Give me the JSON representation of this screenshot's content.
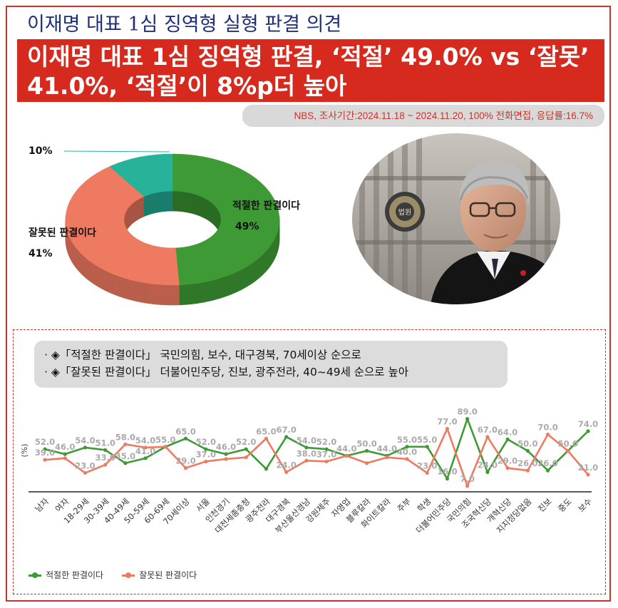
{
  "top_title": "이재명 대표 1심 징역형 실형 판결 의견",
  "headline": {
    "line1": "이재명 대표 1심 징역형 판결, ‘적절’ 49.0% vs ‘잘못’",
    "line2": "41.0%, ‘적절’이 8%p더 높아"
  },
  "source": "NBS, 조사기간:2024.11.18 ~ 2024.11.20, 100% 전화면접, 응답률:16.7%",
  "photo": {
    "sign_text": "법원"
  },
  "notes": [
    "· ◈「적절한 판결이다」 국민의힘, 보수, 대구경북, 70세이상 순으로",
    "· ◈「잘못된 판결이다」 더불어민주당, 진보, 광주전라, 40~49세 순으로 높아"
  ],
  "colors": {
    "green": "#3d9a34",
    "salmon": "#ef7a62",
    "teal": "#26b39a",
    "red": "#d72a1f"
  },
  "chart_data": [
    {
      "type": "pie",
      "style": "donut-3d",
      "slices": [
        {
          "label": "적절한 판결이다",
          "value": 49,
          "value_label": "49%",
          "color": "#3d9a34"
        },
        {
          "label": "잘못된 판결이다",
          "value": 41,
          "value_label": "41%",
          "color": "#ef7a62"
        },
        {
          "label": "",
          "value": 10,
          "value_label": "10%",
          "color": "#26b39a"
        }
      ]
    },
    {
      "type": "line",
      "ylabel": "(%)",
      "categories": [
        "남자",
        "여자",
        "18-29세",
        "30-39세",
        "40-49세",
        "50-59세",
        "60-69세",
        "70세이상",
        "서울",
        "인천경기",
        "대전세종충청",
        "광주전라",
        "대구경북",
        "부산울산경남",
        "강원제주",
        "자영업",
        "블루칼라",
        "화이트칼라",
        "주부",
        "학생",
        "더불어민주당",
        "국민의힘",
        "조국혁신당",
        "개혁신당",
        "지지정당없음",
        "진보",
        "중도",
        "보수"
      ],
      "series": [
        {
          "name": "적절한 판결이다",
          "color": "#3d9a34",
          "values": [
            52.0,
            46.0,
            54.0,
            51.0,
            35.0,
            41.0,
            55.0,
            65.0,
            52.0,
            46.0,
            52.0,
            28.0,
            67.0,
            54.0,
            52.0,
            44.0,
            50.0,
            44.0,
            55.0,
            55.0,
            16.0,
            89.0,
            24.0,
            64.0,
            50.0,
            26.0,
            50.0,
            74.0
          ],
          "labels": [
            "52.0",
            "46.0",
            "54.0",
            "51.0",
            "35.0",
            "41.0",
            "55.0",
            "65.0",
            "52.0",
            "46.0",
            "52.0",
            "",
            "67.0",
            "54.0",
            "52.0",
            "44.0",
            "50.0",
            "44.0",
            "55.0",
            "55.0",
            "16.0",
            "89.0",
            "24.0",
            "64.0",
            "50.0",
            "26.0",
            "50.0",
            "74.0"
          ]
        },
        {
          "name": "잘못된 판결이다",
          "color": "#ef7a62",
          "values": [
            39.0,
            41.0,
            23.0,
            33.0,
            58.0,
            54.0,
            55.0,
            29.0,
            37.0,
            40.0,
            42.0,
            65.0,
            24.0,
            38.0,
            37.0,
            44.0,
            35.0,
            42.0,
            40.0,
            23.0,
            77.0,
            7.0,
            67.0,
            29.0,
            26.0,
            70.0,
            50.0,
            21.0
          ],
          "labels": [
            "39.0",
            "",
            "23.0",
            "33.0",
            "58.0",
            "54.0",
            "",
            "29.0",
            "37.0",
            "",
            "",
            "65.0",
            "24.0",
            "38.0",
            "37.0",
            "",
            "",
            "",
            "40.0",
            "23.0",
            "77.0",
            "7.0",
            "67.0",
            "29.0",
            "26.0",
            "70.0",
            "",
            "21.0"
          ]
        }
      ],
      "ylim": [
        0,
        100
      ]
    }
  ]
}
